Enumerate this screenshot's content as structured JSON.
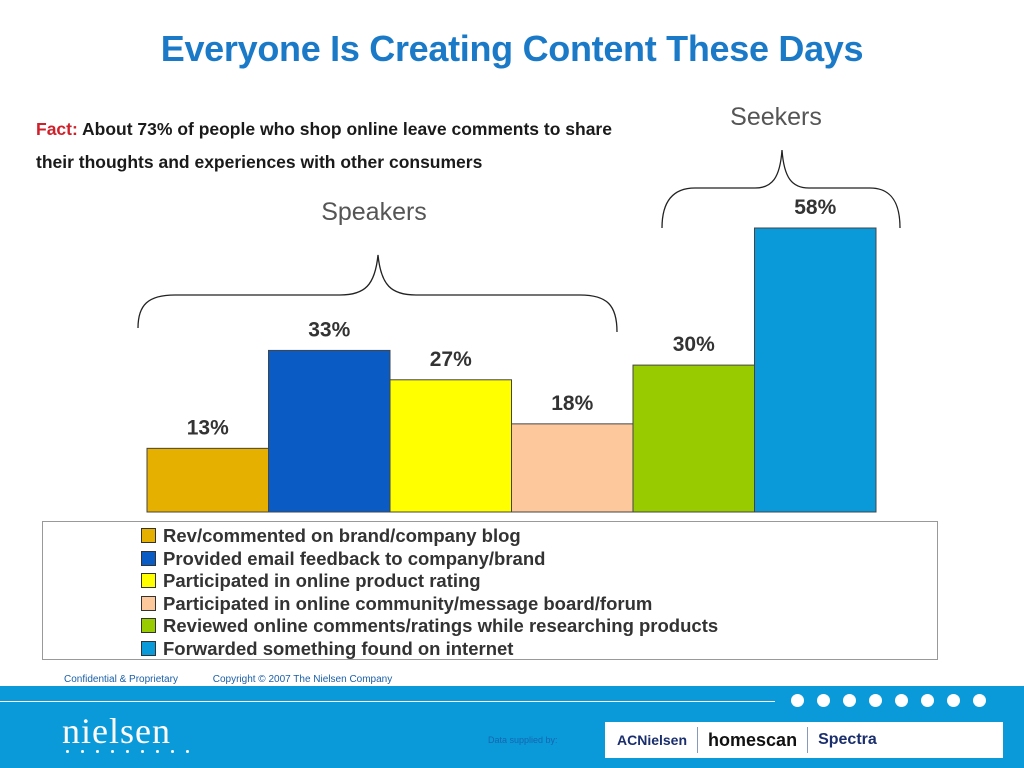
{
  "title": "Everyone Is Creating Content These Days",
  "fact": {
    "label": "Fact:",
    "text": "About 73% of people who shop online leave comments to share their thoughts and experiences with other consumers"
  },
  "group_labels": {
    "speakers": "Speakers",
    "seekers": "Seekers"
  },
  "chart_data": {
    "type": "bar",
    "categories": [
      "Rev/commented on brand/company blog",
      "Provided email feedback to company/brand",
      "Participated in online product rating",
      "Participated in online community/message board/forum",
      "Reviewed online comments/ratings while researching products",
      "Forwarded something found on internet"
    ],
    "values": [
      13,
      33,
      27,
      18,
      30,
      58
    ],
    "data_labels": [
      "13%",
      "33%",
      "27%",
      "18%",
      "30%",
      "58%"
    ],
    "colors": [
      "#e6b000",
      "#0a5cc4",
      "#ffff00",
      "#fdc89c",
      "#99cc00",
      "#0a9ad9"
    ],
    "ylim": [
      0,
      58
    ],
    "legend_position": "bottom",
    "grid": false
  },
  "footer": {
    "confidential": "Confidential & Proprietary",
    "copyright": "Copyright © 2007 The Nielsen Company",
    "logo": "nielsen",
    "supplied_by": "Data supplied by:",
    "partners": [
      "ACNielsen",
      "homescan",
      "Spectra"
    ]
  }
}
